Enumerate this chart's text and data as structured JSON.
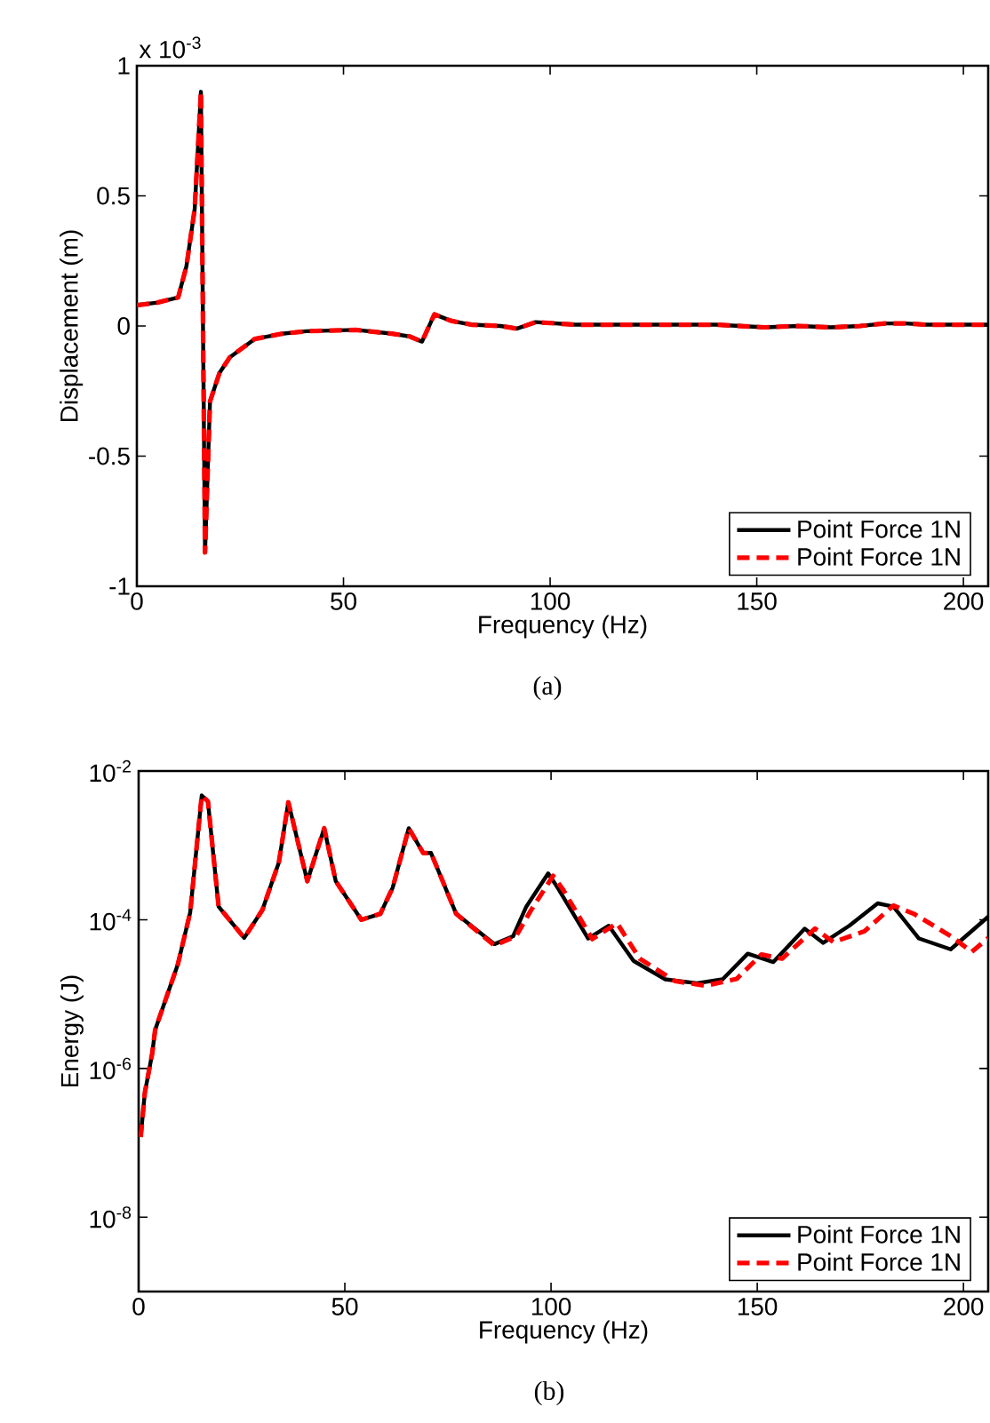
{
  "chart_data": [
    {
      "type": "line",
      "xlabel": "Frequency (Hz)",
      "ylabel": "Displacement (m)",
      "annotations": [
        "x 10$^{-3}$",
        "(a)"
      ],
      "xlim": [
        0,
        206
      ],
      "ylim": [
        -1,
        1
      ],
      "xticks": [
        0,
        50,
        100,
        150,
        200
      ],
      "yticks": [
        -1,
        -0.5,
        0,
        0.5,
        1
      ],
      "legend": "bottom right",
      "series": [
        {
          "name": "Point Force 1N",
          "color": "#000000",
          "line_style": "solid",
          "x": [
            0,
            5,
            10,
            12,
            14,
            15.5,
            16.5,
            17.7,
            20,
            22.5,
            28.5,
            35,
            41,
            53,
            62,
            66,
            69,
            72,
            76,
            81,
            88,
            92,
            96.5,
            106,
            120,
            140,
            152,
            160,
            168,
            175,
            181,
            186,
            191,
            200,
            206
          ],
          "values": [
            0.08,
            0.09,
            0.11,
            0.23,
            0.45,
            0.9,
            -0.87,
            -0.29,
            -0.18,
            -0.12,
            -0.05,
            -0.03,
            -0.02,
            -0.015,
            -0.03,
            -0.04,
            -0.06,
            0.045,
            0.02,
            0.005,
            0.0,
            -0.01,
            0.015,
            0.005,
            0.005,
            0.005,
            -0.005,
            0.0,
            -0.005,
            0.0,
            0.01,
            0.01,
            0.005,
            0.005,
            0.005
          ]
        },
        {
          "name": "Point Force 1N",
          "color": "#ff0000",
          "line_style": "dashed",
          "x": [
            0,
            5,
            10,
            12,
            14,
            15.5,
            16.5,
            17.7,
            20,
            22.5,
            28.5,
            35,
            41,
            53,
            62,
            66,
            69,
            72,
            76,
            81,
            88,
            92,
            96.5,
            106,
            120,
            140,
            152,
            160,
            168,
            175,
            181,
            186,
            191,
            200,
            206
          ],
          "values": [
            0.08,
            0.09,
            0.11,
            0.23,
            0.45,
            0.9,
            -0.87,
            -0.29,
            -0.18,
            -0.12,
            -0.05,
            -0.03,
            -0.02,
            -0.015,
            -0.03,
            -0.04,
            -0.06,
            0.045,
            0.02,
            0.005,
            0.0,
            -0.01,
            0.015,
            0.005,
            0.005,
            0.005,
            -0.005,
            0.0,
            -0.005,
            0.0,
            0.01,
            0.01,
            0.005,
            0.005,
            0.005
          ]
        }
      ]
    },
    {
      "type": "line",
      "xlabel": "Frequency (Hz)",
      "ylabel": "Energy (J)",
      "annotations": [
        "(b)"
      ],
      "log": "y",
      "xlim": [
        0,
        206
      ],
      "ylim": [
        1e-09,
        0.01
      ],
      "xticks": [
        0,
        50,
        100,
        150,
        200
      ],
      "yticks": [
        {
          "value": 1e-08,
          "label": "10$^{-8}$"
        },
        {
          "value": 1e-06,
          "label": "10$^{-6}$"
        },
        {
          "value": 0.0001,
          "label": "10$^{-4}$"
        },
        {
          "value": 0.01,
          "label": "10$^{-2}$"
        }
      ],
      "legend": "bottom right",
      "series": [
        {
          "name": "Point Force 1N",
          "color": "#000000",
          "line_style": "solid",
          "x": [
            0.5,
            1.5,
            3.3,
            4,
            6.4,
            9.5,
            12.5,
            15.3,
            16.8,
            19.4,
            25.6,
            30,
            34,
            36.3,
            40.9,
            45,
            47.8,
            54,
            58.6,
            61.6,
            65.5,
            69,
            70.9,
            77,
            86.3,
            90.8,
            94,
            99.3,
            101.6,
            109,
            114,
            120,
            127.7,
            135.4,
            141.6,
            147.7,
            153.9,
            161.5,
            166,
            172.3,
            179.2,
            183,
            189.2,
            196.9,
            206
          ],
          "values": [
            1.2e-07,
            4.7e-07,
            1.6e-06,
            3.3e-06,
            8e-06,
            2.5e-05,
            0.000125,
            0.0047,
            0.0039,
            0.00015,
            5.7e-05,
            0.000135,
            0.00059,
            0.0038,
            0.00033,
            0.0017,
            0.00033,
            0.0001,
            0.00012,
            0.00027,
            0.0017,
            0.00079,
            0.00079,
            0.00012,
            4.7e-05,
            6e-05,
            0.00015,
            0.00042,
            0.00027,
            5.6e-05,
            8.3e-05,
            2.8e-05,
            1.58e-05,
            1.4e-05,
            1.58e-05,
            3.5e-05,
            2.7e-05,
            7.6e-05,
            4.9e-05,
            8.3e-05,
            0.000166,
            0.00015,
            5.6e-05,
            4e-05,
            0.00011
          ]
        },
        {
          "name": "Point Force 1N",
          "color": "#ff0000",
          "line_style": "dashed",
          "x": [
            0.5,
            1.5,
            3.3,
            4,
            6.4,
            9.5,
            12.5,
            15.3,
            16.8,
            19.4,
            25.6,
            30,
            34,
            36.3,
            40.9,
            45,
            47.8,
            54,
            58.6,
            61.6,
            65.5,
            69,
            70.9,
            77,
            86.3,
            91.5,
            95,
            100.5,
            103,
            110,
            116,
            121.5,
            130,
            137.5,
            145,
            151,
            156,
            164,
            168.5,
            176,
            183,
            188,
            197,
            202,
            206
          ],
          "values": [
            1.2e-07,
            4.7e-07,
            1.6e-06,
            3.3e-06,
            8e-06,
            2.5e-05,
            0.000125,
            0.0047,
            0.0039,
            0.00015,
            5.7e-05,
            0.000135,
            0.00059,
            0.0038,
            0.00033,
            0.0017,
            0.00033,
            0.0001,
            0.00012,
            0.00027,
            0.0017,
            0.00079,
            0.00079,
            0.00012,
            4.5e-05,
            6e-05,
            0.00013,
            0.00039,
            0.00025,
            5.5e-05,
            9e-05,
            3e-05,
            1.5e-05,
            1.3e-05,
            1.6e-05,
            3.4e-05,
            3e-05,
            7.6e-05,
            5e-05,
            7e-05,
            0.000155,
            0.00012,
            6e-05,
            3.7e-05,
            5.7e-05
          ]
        }
      ]
    }
  ]
}
